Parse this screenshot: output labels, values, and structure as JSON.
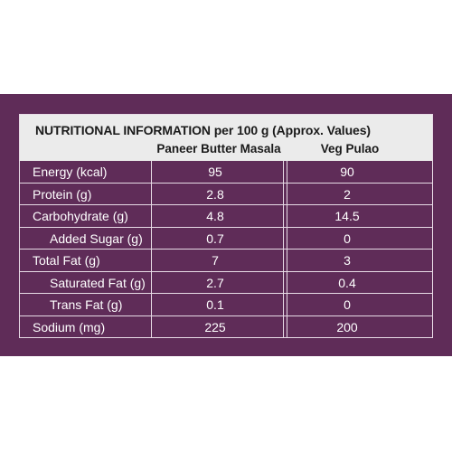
{
  "table": {
    "title": "NUTRITIONAL INFORMATION per 100 g (Approx. Values)",
    "columns": [
      "Paneer Butter Masala",
      "Veg Pulao"
    ],
    "rows": [
      {
        "name": "Energy (kcal)",
        "values": [
          "95",
          "90"
        ],
        "indent": false
      },
      {
        "name": "Protein (g)",
        "values": [
          "2.8",
          "2"
        ],
        "indent": false
      },
      {
        "name": "Carbohydrate (g)",
        "values": [
          "4.8",
          "14.5"
        ],
        "indent": false
      },
      {
        "name": "Added Sugar (g)",
        "values": [
          "0.7",
          "0"
        ],
        "indent": true
      },
      {
        "name": "Total Fat (g)",
        "values": [
          "7",
          "3"
        ],
        "indent": false
      },
      {
        "name": "Saturated Fat (g)",
        "values": [
          "2.7",
          "0.4"
        ],
        "indent": true
      },
      {
        "name": "Trans Fat (g)",
        "values": [
          "0.1",
          "0"
        ],
        "indent": true
      },
      {
        "name": "Sodium (mg)",
        "values": [
          "225",
          "200"
        ],
        "indent": false
      }
    ]
  },
  "colors": {
    "panel": "#5f2c58",
    "header_bg": "#ebebeb",
    "rule": "#e8dbe6",
    "text_light": "#ffffff",
    "text_dark": "#1a1a1a"
  }
}
